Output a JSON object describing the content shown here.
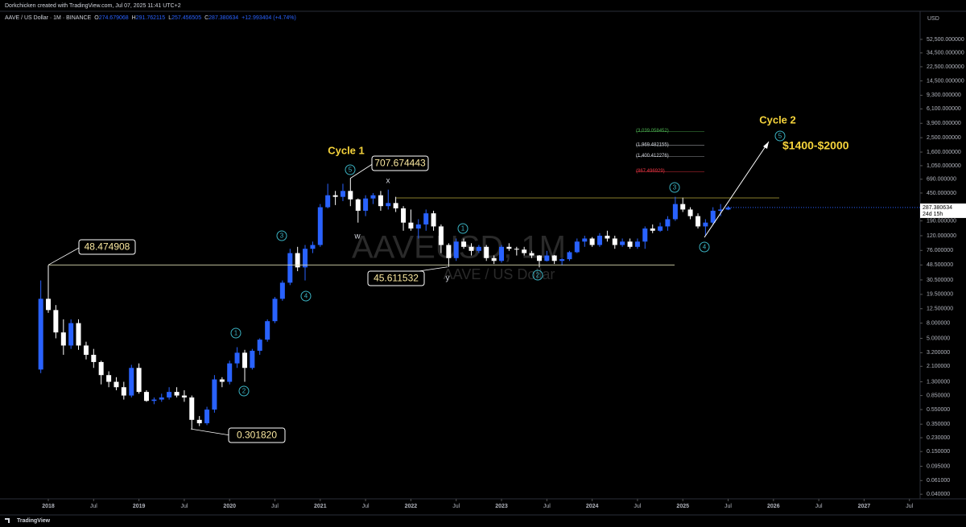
{
  "header": {
    "credit": "Dorkchicken created with TradingView.com, Jul 07, 2025 11:41 UTC+2",
    "symbol": "AAVE / US Dollar · 1M · BINANCE",
    "ohlc": [
      {
        "label": "O",
        "value": "274.679068"
      },
      {
        "label": "H",
        "value": "291.762115"
      },
      {
        "label": "L",
        "value": "257.456505"
      },
      {
        "label": "C",
        "value": "287.380634"
      }
    ],
    "change": "+12.993404 (+4.74%)"
  },
  "footer": "TradingView",
  "chart_data": {
    "type": "candlestick",
    "watermark": "AAVEUSD, 1M",
    "watermark_sub": "AAVE / US Dollar",
    "currency": "USD",
    "up_color": "#2962ff",
    "down_color": "#ffffff",
    "log_scale": true,
    "xlim": [
      2017.467,
      2027.618
    ],
    "ylim": [
      0.027,
      108000
    ],
    "xticks": [
      2018,
      {
        "value": 2018.5,
        "label": "Jul"
      },
      2019,
      {
        "value": 2019.5,
        "label": "Jul"
      },
      2020,
      {
        "value": 2020.5,
        "label": "Jul"
      },
      2021,
      {
        "value": 2021.5,
        "label": "Jul"
      },
      2022,
      {
        "value": 2022.5,
        "label": "Jul"
      },
      2023,
      {
        "value": 2023.5,
        "label": "Jul"
      },
      2024,
      {
        "value": 2024.5,
        "label": "Jul"
      },
      2025,
      {
        "value": 2025.5,
        "label": "Jul"
      },
      2026,
      {
        "value": 2026.5,
        "label": "Jul"
      },
      2027,
      {
        "value": 2027.5,
        "label": "Jul"
      }
    ],
    "yticks": [
      {
        "value": 52500,
        "label": "52,500.000000"
      },
      {
        "value": 34500,
        "label": "34,500.000000"
      },
      {
        "value": 22500,
        "label": "22,500.000000"
      },
      {
        "value": 14500,
        "label": "14,500.000000"
      },
      {
        "value": 9300,
        "label": "9,300.000000"
      },
      {
        "value": 6100,
        "label": "6,100.000000"
      },
      {
        "value": 3900,
        "label": "3,900.000000"
      },
      {
        "value": 2500,
        "label": "2,500.000000"
      },
      {
        "value": 1600,
        "label": "1,600.000000"
      },
      {
        "value": 1050,
        "label": "1,050.000000"
      },
      {
        "value": 690,
        "label": "690.000000"
      },
      {
        "value": 450,
        "label": "450.000000"
      },
      {
        "value": 190,
        "label": "190.000000"
      },
      {
        "value": 120,
        "label": "120.000000"
      },
      {
        "value": 76,
        "label": "76.000000"
      },
      {
        "value": 48.5,
        "label": "48.500000"
      },
      {
        "value": 30.5,
        "label": "30.500000"
      },
      {
        "value": 19.5,
        "label": "19.500000"
      },
      {
        "value": 12.5,
        "label": "12.500000"
      },
      {
        "value": 8,
        "label": "8.000000"
      },
      {
        "value": 5,
        "label": "5.000000"
      },
      {
        "value": 3.2,
        "label": "3.200000"
      },
      {
        "value": 2.1,
        "label": "2.100000"
      },
      {
        "value": 1.3,
        "label": "1.300000"
      },
      {
        "value": 0.85,
        "label": "0.850000"
      },
      {
        "value": 0.55,
        "label": "0.550000"
      },
      {
        "value": 0.35,
        "label": "0.350000"
      },
      {
        "value": 0.23,
        "label": "0.230000"
      },
      {
        "value": 0.15,
        "label": "0.150000"
      },
      {
        "value": 0.095,
        "label": "0.095000"
      },
      {
        "value": 0.061,
        "label": "0.061000"
      },
      {
        "value": 0.04,
        "label": "0.040000"
      }
    ],
    "x": [
      2017.917,
      2018,
      2018.083,
      2018.167,
      2018.25,
      2018.333,
      2018.417,
      2018.5,
      2018.583,
      2018.667,
      2018.75,
      2018.833,
      2018.917,
      2019,
      2019.083,
      2019.167,
      2019.25,
      2019.333,
      2019.417,
      2019.5,
      2019.583,
      2019.667,
      2019.75,
      2019.833,
      2019.917,
      2020,
      2020.083,
      2020.167,
      2020.25,
      2020.333,
      2020.417,
      2020.5,
      2020.583,
      2020.667,
      2020.75,
      2020.833,
      2020.917,
      2021,
      2021.083,
      2021.167,
      2021.25,
      2021.333,
      2021.417,
      2021.5,
      2021.583,
      2021.667,
      2021.75,
      2021.833,
      2021.917,
      2022,
      2022.083,
      2022.167,
      2022.25,
      2022.333,
      2022.417,
      2022.5,
      2022.583,
      2022.667,
      2022.75,
      2022.833,
      2022.917,
      2023,
      2023.083,
      2023.167,
      2023.25,
      2023.333,
      2023.417,
      2023.5,
      2023.583,
      2023.667,
      2023.75,
      2023.833,
      2023.917,
      2024,
      2024.083,
      2024.167,
      2024.25,
      2024.333,
      2024.417,
      2024.5,
      2024.583,
      2024.667,
      2024.75,
      2024.833,
      2024.917,
      2025,
      2025.083,
      2025.167,
      2025.25,
      2025.333,
      2025.417,
      2025.5
    ],
    "ohlc": [
      [
        1.9,
        30,
        1.7,
        17
      ],
      [
        17,
        48,
        11,
        12
      ],
      [
        12,
        14,
        5,
        6
      ],
      [
        6,
        9,
        3,
        4
      ],
      [
        4,
        9,
        3.6,
        8
      ],
      [
        8,
        9,
        3.5,
        4
      ],
      [
        4,
        4.5,
        2.6,
        3
      ],
      [
        3,
        3.6,
        2,
        2.4
      ],
      [
        2.4,
        2.5,
        1.2,
        1.6
      ],
      [
        1.6,
        1.8,
        1.1,
        1.3
      ],
      [
        1.3,
        1.5,
        1,
        1.1
      ],
      [
        1.1,
        1.3,
        0.75,
        0.85
      ],
      [
        0.85,
        2.2,
        0.8,
        2
      ],
      [
        2,
        2.3,
        0.9,
        0.95
      ],
      [
        0.95,
        1,
        0.7,
        0.72
      ],
      [
        0.72,
        0.8,
        0.65,
        0.75
      ],
      [
        0.75,
        0.9,
        0.7,
        0.8
      ],
      [
        0.8,
        1.1,
        0.75,
        0.95
      ],
      [
        0.95,
        1.1,
        0.8,
        0.85
      ],
      [
        0.85,
        1,
        0.7,
        0.8
      ],
      [
        0.8,
        0.85,
        0.3018,
        0.4
      ],
      [
        0.4,
        0.45,
        0.33,
        0.36
      ],
      [
        0.36,
        0.6,
        0.34,
        0.55
      ],
      [
        0.55,
        1.6,
        0.5,
        1.4
      ],
      [
        1.4,
        1.5,
        1.1,
        1.3
      ],
      [
        1.3,
        2.5,
        1.2,
        2.3
      ],
      [
        2.3,
        3.8,
        2,
        3.2
      ],
      [
        3.2,
        3.5,
        1.3,
        2
      ],
      [
        2,
        3.6,
        1.9,
        3.4
      ],
      [
        3.4,
        5,
        3,
        4.8
      ],
      [
        4.8,
        9,
        4.5,
        8.5
      ],
      [
        8.5,
        18,
        8,
        17
      ],
      [
        17,
        30,
        16,
        28
      ],
      [
        28,
        80,
        26,
        70
      ],
      [
        70,
        85,
        40,
        45
      ],
      [
        45,
        90,
        30,
        80
      ],
      [
        80,
        100,
        70,
        90
      ],
      [
        90,
        320,
        85,
        290
      ],
      [
        290,
        600,
        280,
        420
      ],
      [
        420,
        480,
        310,
        400
      ],
      [
        400,
        600,
        350,
        480
      ],
      [
        480,
        707.674443,
        300,
        370
      ],
      [
        370,
        380,
        180,
        260
      ],
      [
        260,
        420,
        220,
        380
      ],
      [
        380,
        450,
        320,
        420
      ],
      [
        420,
        480,
        260,
        300
      ],
      [
        300,
        500,
        270,
        330
      ],
      [
        330,
        400,
        250,
        280
      ],
      [
        280,
        300,
        140,
        180
      ],
      [
        180,
        270,
        140,
        150
      ],
      [
        150,
        200,
        110,
        170
      ],
      [
        170,
        270,
        140,
        240
      ],
      [
        240,
        260,
        140,
        160
      ],
      [
        160,
        170,
        70,
        90
      ],
      [
        90,
        95,
        45.611532,
        60
      ],
      [
        60,
        110,
        55,
        100
      ],
      [
        100,
        110,
        80,
        85
      ],
      [
        85,
        95,
        65,
        75
      ],
      [
        75,
        90,
        70,
        85
      ],
      [
        85,
        90,
        55,
        60
      ],
      [
        60,
        65,
        50,
        55
      ],
      [
        55,
        90,
        52,
        85
      ],
      [
        85,
        95,
        75,
        80
      ],
      [
        80,
        85,
        65,
        78
      ],
      [
        78,
        85,
        65,
        70
      ],
      [
        70,
        75,
        60,
        65
      ],
      [
        65,
        66,
        45,
        55
      ],
      [
        55,
        75,
        54,
        65
      ],
      [
        65,
        66,
        50,
        55
      ],
      [
        55,
        60,
        48,
        58
      ],
      [
        58,
        75,
        55,
        72
      ],
      [
        72,
        110,
        70,
        100
      ],
      [
        100,
        120,
        85,
        110
      ],
      [
        110,
        115,
        85,
        90
      ],
      [
        90,
        130,
        85,
        120
      ],
      [
        120,
        140,
        100,
        110
      ],
      [
        110,
        120,
        80,
        90
      ],
      [
        90,
        110,
        85,
        100
      ],
      [
        100,
        110,
        80,
        85
      ],
      [
        85,
        110,
        80,
        100
      ],
      [
        100,
        160,
        80,
        150
      ],
      [
        150,
        170,
        130,
        140
      ],
      [
        140,
        180,
        135,
        160
      ],
      [
        160,
        220,
        140,
        200
      ],
      [
        200,
        400,
        190,
        320
      ],
      [
        320,
        390,
        250,
        270
      ],
      [
        270,
        290,
        200,
        220
      ],
      [
        220,
        240,
        150,
        160
      ],
      [
        160,
        200,
        120,
        180
      ],
      [
        180,
        290,
        170,
        260
      ],
      [
        260,
        320,
        220,
        270
      ],
      [
        270,
        300,
        265,
        287.380634
      ]
    ],
    "last_price": {
      "value": 287.380634,
      "label": "287.380634"
    },
    "countdown": "24d 15h",
    "callouts": [
      {
        "value": 48.474908,
        "label": "48.474908"
      },
      {
        "value": 707.674443,
        "label": "707.674443"
      },
      {
        "value": 45.611532,
        "label": "45.611532"
      },
      {
        "value": 0.30182,
        "label": "0.301820"
      }
    ],
    "fib_levels": [
      {
        "value": 3039.058452,
        "label": "(3,039.058452)",
        "color": "#4caf50"
      },
      {
        "value": 1969.482155,
        "label": "(1,969.482155)",
        "color": "#d1d4dc"
      },
      {
        "value": 1400.412276,
        "label": "(1,400.412276)",
        "color": "#d1d4dc"
      },
      {
        "value": 867.496929,
        "label": "(867.496929)",
        "color": "#f23645"
      }
    ],
    "cycles": [
      "Cycle 1",
      "Cycle 2"
    ],
    "target": "$1400-$2000",
    "corrective_labels": [
      "w",
      "x",
      "y"
    ],
    "waves": [
      "5",
      "3",
      "4",
      "1",
      "2",
      "1",
      "2",
      "3",
      "4",
      "5"
    ]
  }
}
